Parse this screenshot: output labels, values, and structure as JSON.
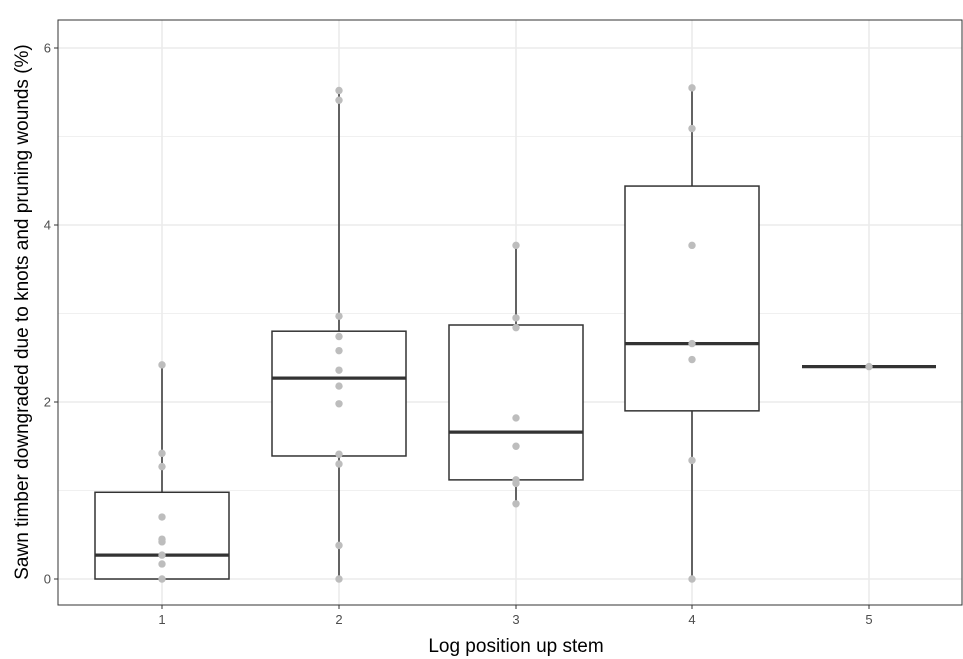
{
  "chart_data": {
    "type": "box",
    "xlabel": "Log position up stem",
    "ylabel": "Sawn timber downgraded due to knots and pruning wounds (%)",
    "categories": [
      "1",
      "2",
      "3",
      "4",
      "5"
    ],
    "ylim": [
      -0.3,
      6.3
    ],
    "yticks": [
      0,
      2,
      4,
      6
    ],
    "grid": true,
    "boxes": [
      {
        "category": "1",
        "min": 0.0,
        "q1": 0.0,
        "median": 0.27,
        "q3": 0.98,
        "max": 2.42
      },
      {
        "category": "2",
        "min": 0.0,
        "q1": 1.39,
        "median": 2.27,
        "q3": 2.8,
        "max": 5.52
      },
      {
        "category": "3",
        "min": 0.85,
        "q1": 1.12,
        "median": 1.66,
        "q3": 2.87,
        "max": 3.77
      },
      {
        "category": "4",
        "min": 0.0,
        "q1": 1.9,
        "median": 2.66,
        "q3": 4.44,
        "max": 5.55
      },
      {
        "category": "5",
        "min": 2.4,
        "q1": 2.4,
        "median": 2.4,
        "q3": 2.4,
        "max": 2.4
      }
    ],
    "points": [
      {
        "category": "1",
        "values": [
          2.42,
          1.42,
          1.27,
          0.7,
          0.45,
          0.42,
          0.27,
          0.17,
          0.0
        ]
      },
      {
        "category": "2",
        "values": [
          5.52,
          5.41,
          2.97,
          2.74,
          2.58,
          2.36,
          2.18,
          1.98,
          1.41,
          1.3,
          0.38,
          0.0
        ]
      },
      {
        "category": "3",
        "values": [
          3.77,
          2.95,
          2.84,
          1.82,
          1.5,
          1.12,
          1.08,
          0.85
        ]
      },
      {
        "category": "4",
        "values": [
          5.55,
          5.09,
          3.77,
          2.66,
          2.48,
          1.34,
          0.0
        ]
      },
      {
        "category": "5",
        "values": [
          2.4
        ]
      }
    ],
    "colors": {
      "box_line": "#333333",
      "point": "#bdbdbd",
      "grid": "#ebebeb",
      "panel_border": "#333333",
      "tick_text": "#4d4d4d"
    }
  }
}
